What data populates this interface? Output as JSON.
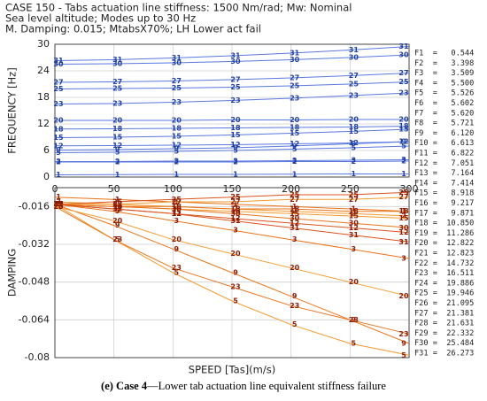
{
  "chart_data": [
    {
      "type": "line",
      "title_lines": [
        "CASE 150 - Tabs actuation line stiffness: 1500 Nm/rad; Mw: Nominal",
        "Sea level altitude; Modes up to 30 Hz",
        "M. Damping: 0.015; MtabsX70%; LH Lower act fail"
      ],
      "ylabel": "FREQUENCY [Hz]",
      "x": [
        0,
        50,
        100,
        150,
        200,
        250,
        300
      ],
      "xlim": [
        0,
        300
      ],
      "xticks": [
        0,
        50,
        100,
        150,
        200,
        250,
        300
      ],
      "ylim": [
        0,
        30
      ],
      "yticks": [
        0,
        6,
        12,
        18,
        24,
        30
      ],
      "grid": true,
      "series": [
        {
          "name": "1",
          "color": "#5a78e0",
          "values": [
            0.5,
            0.55,
            0.6,
            0.6,
            0.65,
            0.7,
            0.7
          ]
        },
        {
          "name": "2",
          "color": "#5a78e0",
          "values": [
            3.4,
            3.4,
            3.4,
            3.4,
            3.5,
            3.5,
            3.6
          ]
        },
        {
          "name": "3",
          "color": "#5a78e0",
          "values": [
            3.5,
            3.5,
            3.6,
            3.6,
            3.7,
            3.8,
            3.9
          ]
        },
        {
          "name": "5",
          "color": "#5a78e0",
          "values": [
            5.5,
            5.6,
            5.8,
            6.0,
            6.3,
            6.6,
            7.0
          ]
        },
        {
          "name": "9",
          "color": "#5a78e0",
          "values": [
            6.1,
            6.2,
            6.4,
            6.6,
            7.0,
            7.5,
            8.0
          ]
        },
        {
          "name": "12",
          "color": "#5a78e0",
          "values": [
            7.05,
            7.1,
            7.2,
            7.3,
            7.5,
            7.7,
            8.0
          ]
        },
        {
          "name": "15",
          "color": "#5a78e0",
          "values": [
            8.9,
            9.0,
            9.2,
            9.5,
            9.9,
            10.3,
            10.8
          ]
        },
        {
          "name": "18",
          "color": "#5a78e0",
          "values": [
            10.85,
            10.9,
            11.0,
            11.1,
            11.2,
            11.3,
            11.5
          ]
        },
        {
          "name": "20",
          "color": "#5a78e0",
          "values": [
            12.8,
            12.8,
            12.8,
            12.9,
            12.9,
            13.0,
            13.0
          ]
        },
        {
          "name": "23",
          "color": "#5a78e0",
          "values": [
            16.5,
            16.6,
            16.9,
            17.3,
            17.8,
            18.4,
            19.0
          ]
        },
        {
          "name": "25",
          "color": "#5a78e0",
          "values": [
            19.9,
            20.0,
            20.1,
            20.3,
            20.6,
            21.0,
            21.5
          ]
        },
        {
          "name": "27",
          "color": "#5a78e0",
          "values": [
            21.4,
            21.5,
            21.7,
            22.0,
            22.4,
            22.9,
            23.5
          ]
        },
        {
          "name": "30",
          "color": "#5a78e0",
          "values": [
            25.5,
            25.6,
            25.8,
            26.1,
            26.5,
            27.0,
            27.6
          ]
        },
        {
          "name": "31",
          "color": "#5a78e0",
          "values": [
            26.3,
            26.5,
            26.9,
            27.4,
            28.0,
            28.7,
            29.5
          ]
        }
      ]
    },
    {
      "type": "line",
      "ylabel": "DAMPING",
      "xlabel": "SPEED [Tas](m/s)",
      "x": [
        0,
        50,
        100,
        150,
        200,
        250,
        300
      ],
      "xlim": [
        0,
        300
      ],
      "xticks": [
        0,
        50,
        100,
        150,
        200,
        250,
        300
      ],
      "ylim": [
        -0.08,
        -0.008
      ],
      "yticks": [
        -0.08,
        -0.064,
        -0.048,
        -0.032,
        -0.016
      ],
      "grid": true,
      "series": [
        {
          "name": "1",
          "color": "#e8731a",
          "values": [
            -0.012,
            -0.013,
            -0.014,
            -0.015,
            -0.016,
            -0.017,
            -0.018
          ]
        },
        {
          "name": "2",
          "color": "#f29a2e",
          "values": [
            -0.014,
            -0.015,
            -0.016,
            -0.017,
            -0.018,
            -0.019,
            -0.02
          ]
        },
        {
          "name": "3",
          "color": "#e8731a",
          "values": [
            -0.015,
            -0.018,
            -0.022,
            -0.026,
            -0.03,
            -0.034,
            -0.038
          ]
        },
        {
          "name": "5",
          "color": "#f29a2e",
          "values": [
            -0.015,
            -0.03,
            -0.044,
            -0.056,
            -0.066,
            -0.074,
            -0.079
          ]
        },
        {
          "name": "9",
          "color": "#e8731a",
          "values": [
            -0.015,
            -0.024,
            -0.034,
            -0.044,
            -0.054,
            -0.064,
            -0.074
          ]
        },
        {
          "name": "12",
          "color": "#d9531e",
          "values": [
            -0.015,
            -0.017,
            -0.019,
            -0.021,
            -0.023,
            -0.025,
            -0.027
          ]
        },
        {
          "name": "15",
          "color": "#f29a2e",
          "values": [
            -0.015,
            -0.016,
            -0.017,
            -0.018,
            -0.019,
            -0.02,
            -0.021
          ]
        },
        {
          "name": "18",
          "color": "#e8731a",
          "values": [
            -0.015,
            -0.016,
            -0.016,
            -0.017,
            -0.017,
            -0.018,
            -0.018
          ]
        },
        {
          "name": "20",
          "color": "#f29a2e",
          "values": [
            -0.016,
            -0.022,
            -0.03,
            -0.036,
            -0.042,
            -0.048,
            -0.054
          ]
        },
        {
          "name": "23",
          "color": "#e8731a",
          "values": [
            -0.016,
            -0.03,
            -0.042,
            -0.05,
            -0.058,
            -0.064,
            -0.07
          ]
        },
        {
          "name": "25",
          "color": "#d9531e",
          "values": [
            -0.015,
            -0.014,
            -0.013,
            -0.012,
            -0.011,
            -0.011,
            -0.01
          ]
        },
        {
          "name": "27",
          "color": "#f29a2e",
          "values": [
            -0.015,
            -0.015,
            -0.014,
            -0.014,
            -0.013,
            -0.013,
            -0.012
          ]
        },
        {
          "name": "30",
          "color": "#e8731a",
          "values": [
            -0.015,
            -0.016,
            -0.017,
            -0.019,
            -0.021,
            -0.023,
            -0.025
          ]
        },
        {
          "name": "31",
          "color": "#d9531e",
          "values": [
            -0.015,
            -0.017,
            -0.019,
            -0.022,
            -0.025,
            -0.028,
            -0.031
          ]
        }
      ]
    }
  ],
  "mode_list": [
    "F1  =   0.544",
    "F2  =   3.398",
    "F3  =   3.509",
    "F4  =   5.500",
    "F5  =   5.526",
    "F6  =   5.602",
    "F7  =   5.620",
    "F8  =   5.721",
    "F9  =   6.120",
    "F10 =   6.613",
    "F11 =   6.822",
    "F12 =   7.051",
    "F13 =   7.164",
    "F14 =   7.414",
    "F15 =   8.918",
    "F16 =   9.217",
    "F17 =   9.871",
    "F18 =  10.850",
    "F19 =  11.286",
    "F20 =  12.822",
    "F21 =  12.823",
    "F22 =  14.732",
    "F23 =  16.511",
    "F24 =  19.886",
    "F25 =  19.946",
    "F26 =  21.095",
    "F27 =  21.381",
    "F28 =  21.631",
    "F29 =  22.332",
    "F30 =  25.484",
    "F31 =  26.273"
  ],
  "caption_label": "(e) Case 4",
  "caption_text": "—Lower tab actuation line equivalent stiffness failure"
}
